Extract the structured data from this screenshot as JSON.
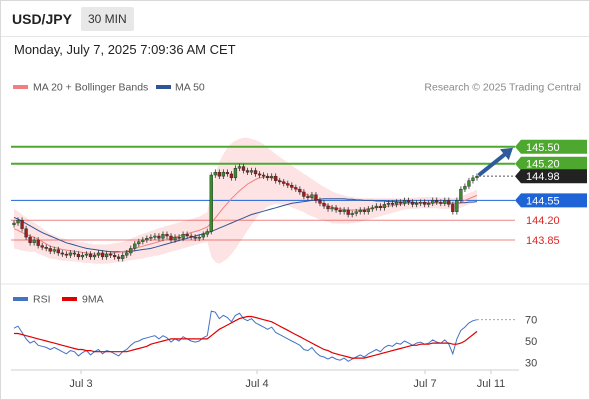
{
  "header": {
    "symbol": "USD/JPY",
    "period": "30 MIN",
    "datetime": "Monday, July 7, 2025 7:09:36 AM CET"
  },
  "legend": {
    "ma20": "MA 20 + Bollinger Bands",
    "ma50": "MA 50",
    "credit": "Research © 2025 Trading Central",
    "ma20_color": "#f08080",
    "ma50_color": "#2f5597"
  },
  "rsi_legend": {
    "rsi": "RSI",
    "ma": "9MA",
    "rsi_color": "#4472c4",
    "ma_color": "#e00000"
  },
  "chart_data": [
    {
      "type": "candlestick",
      "panel": "price",
      "x_ticks": [
        "Jul 3",
        "Jul 4",
        "Jul 7",
        "Jul 11"
      ],
      "ylim": [
        143.3,
        146.4
      ],
      "levels": [
        {
          "label": "145.50",
          "value": 145.5,
          "color": "#4ea72e",
          "kind": "resistance"
        },
        {
          "label": "145.20",
          "value": 145.2,
          "color": "#4ea72e",
          "kind": "resistance"
        },
        {
          "label": "144.98",
          "value": 144.98,
          "color": "#222222",
          "kind": "last price"
        },
        {
          "label": "144.55",
          "value": 144.55,
          "color": "#1f64d6",
          "kind": "pivot"
        },
        {
          "label": "144.20",
          "value": 144.2,
          "color": "#e02424",
          "kind": "support"
        },
        {
          "label": "143.85",
          "value": 143.85,
          "color": "#e02424",
          "kind": "support"
        }
      ],
      "close": [
        144.15,
        144.2,
        144.05,
        143.9,
        143.8,
        143.85,
        143.75,
        143.72,
        143.7,
        143.65,
        143.68,
        143.62,
        143.6,
        143.58,
        143.62,
        143.6,
        143.55,
        143.58,
        143.6,
        143.55,
        143.58,
        143.62,
        143.55,
        143.6,
        143.58,
        143.55,
        143.52,
        143.58,
        143.62,
        143.7,
        143.78,
        143.82,
        143.85,
        143.88,
        143.9,
        143.92,
        143.88,
        143.95,
        143.92,
        143.85,
        143.9,
        143.88,
        143.95,
        143.92,
        143.9,
        143.88,
        143.9,
        143.95,
        144.0,
        145.0,
        145.05,
        144.98,
        145.05,
        145.02,
        144.95,
        145.12,
        145.15,
        145.08,
        145.05,
        145.08,
        145.02,
        145.0,
        144.98,
        144.95,
        144.98,
        144.9,
        144.88,
        144.85,
        144.82,
        144.78,
        144.75,
        144.7,
        144.62,
        144.6,
        144.65,
        144.55,
        144.5,
        144.45,
        144.4,
        144.42,
        144.38,
        144.35,
        144.38,
        144.3,
        144.32,
        144.35,
        144.38,
        144.35,
        144.4,
        144.42,
        144.45,
        144.42,
        144.48,
        144.5,
        144.48,
        144.52,
        144.5,
        144.55,
        144.52,
        144.48,
        144.5,
        144.52,
        144.48,
        144.5,
        144.55,
        144.52,
        144.5,
        144.55,
        144.48,
        144.35,
        144.55,
        144.75,
        144.8,
        144.9,
        144.95,
        144.98
      ],
      "ma20": [
        144.05,
        144.02,
        143.98,
        143.95,
        143.92,
        143.9,
        143.86,
        143.82,
        143.78,
        143.74,
        143.72,
        143.7,
        143.68,
        143.67,
        143.66,
        143.65,
        143.64,
        143.63,
        143.62,
        143.61,
        143.6,
        143.6,
        143.6,
        143.6,
        143.61,
        143.62,
        143.63,
        143.64,
        143.66,
        143.68,
        143.7,
        143.72,
        143.74,
        143.76,
        143.78,
        143.8,
        143.82,
        143.84,
        143.86,
        143.88,
        143.9,
        143.92,
        143.94,
        143.96,
        143.98,
        144.0,
        144.02,
        144.05,
        144.08,
        144.15,
        144.24,
        144.33,
        144.42,
        144.5,
        144.58,
        144.65,
        144.72,
        144.78,
        144.84,
        144.88,
        144.92,
        144.95,
        144.96,
        144.96,
        144.95,
        144.93,
        144.9,
        144.87,
        144.84,
        144.8,
        144.76,
        144.72,
        144.68,
        144.64,
        144.6,
        144.56,
        144.52,
        144.49,
        144.46,
        144.43,
        144.41,
        144.4,
        144.39,
        144.38,
        144.38,
        144.38,
        144.38,
        144.39,
        144.4,
        144.41,
        144.42,
        144.43,
        144.44,
        144.45,
        144.46,
        144.47,
        144.48,
        144.49,
        144.5,
        144.5,
        144.5,
        144.51,
        144.51,
        144.51,
        144.51,
        144.51,
        144.5,
        144.5,
        144.5,
        144.49,
        144.5,
        144.52,
        144.55,
        144.58,
        144.61,
        144.64
      ],
      "ma50": [
        144.25,
        144.22,
        144.18,
        144.14,
        144.1,
        144.06,
        144.02,
        143.98,
        143.95,
        143.92,
        143.89,
        143.86,
        143.83,
        143.8,
        143.78,
        143.76,
        143.74,
        143.72,
        143.7,
        143.69,
        143.68,
        143.67,
        143.66,
        143.65,
        143.64,
        143.64,
        143.64,
        143.64,
        143.64,
        143.65,
        143.66,
        143.67,
        143.68,
        143.69,
        143.7,
        143.72,
        143.74,
        143.76,
        143.78,
        143.8,
        143.82,
        143.84,
        143.86,
        143.88,
        143.9,
        143.92,
        143.94,
        143.96,
        143.98,
        144.0,
        144.03,
        144.06,
        144.09,
        144.12,
        144.15,
        144.18,
        144.21,
        144.24,
        144.27,
        144.3,
        144.32,
        144.34,
        144.36,
        144.38,
        144.4,
        144.42,
        144.44,
        144.46,
        144.48,
        144.5,
        144.51,
        144.52,
        144.53,
        144.54,
        144.55,
        144.56,
        144.57,
        144.58,
        144.58,
        144.58,
        144.58,
        144.58,
        144.58,
        144.57,
        144.57,
        144.56,
        144.56,
        144.55,
        144.55,
        144.55,
        144.54,
        144.54,
        144.54,
        144.53,
        144.53,
        144.53,
        144.52,
        144.52,
        144.52,
        144.52,
        144.51,
        144.51,
        144.51,
        144.51,
        144.51,
        144.51,
        144.5,
        144.5,
        144.5,
        144.5,
        144.5,
        144.51,
        144.51,
        144.52,
        144.52,
        144.53
      ],
      "bb_width": [
        0.35,
        0.34,
        0.32,
        0.3,
        0.28,
        0.26,
        0.25,
        0.24,
        0.23,
        0.22,
        0.21,
        0.2,
        0.2,
        0.19,
        0.19,
        0.18,
        0.18,
        0.18,
        0.18,
        0.17,
        0.17,
        0.17,
        0.17,
        0.17,
        0.17,
        0.17,
        0.17,
        0.18,
        0.18,
        0.19,
        0.2,
        0.21,
        0.22,
        0.22,
        0.23,
        0.23,
        0.24,
        0.24,
        0.24,
        0.24,
        0.24,
        0.24,
        0.24,
        0.24,
        0.24,
        0.24,
        0.24,
        0.25,
        0.26,
        0.6,
        0.78,
        0.9,
        0.95,
        0.98,
        0.98,
        0.96,
        0.92,
        0.88,
        0.82,
        0.76,
        0.7,
        0.64,
        0.58,
        0.52,
        0.48,
        0.44,
        0.42,
        0.4,
        0.38,
        0.37,
        0.36,
        0.35,
        0.34,
        0.34,
        0.33,
        0.32,
        0.31,
        0.3,
        0.29,
        0.28,
        0.27,
        0.26,
        0.25,
        0.24,
        0.23,
        0.22,
        0.21,
        0.2,
        0.19,
        0.18,
        0.17,
        0.16,
        0.15,
        0.14,
        0.13,
        0.12,
        0.11,
        0.1,
        0.1,
        0.1,
        0.1,
        0.1,
        0.1,
        0.1,
        0.1,
        0.1,
        0.1,
        0.1,
        0.1,
        0.1,
        0.1,
        0.1,
        0.1,
        0.1,
        0.1,
        0.1
      ]
    },
    {
      "type": "line",
      "panel": "rsi",
      "y_ticks": [
        30,
        50,
        70
      ],
      "ylim": [
        20,
        80
      ],
      "series": [
        {
          "name": "RSI",
          "values": [
            62,
            64,
            58,
            52,
            48,
            50,
            46,
            45,
            44,
            42,
            44,
            42,
            40,
            38,
            41,
            40,
            36,
            39,
            41,
            37,
            40,
            42,
            38,
            41,
            40,
            38,
            36,
            40,
            42,
            46,
            49,
            50,
            52,
            53,
            54,
            55,
            52,
            55,
            53,
            49,
            52,
            50,
            54,
            52,
            50,
            49,
            50,
            53,
            55,
            78,
            77,
            71,
            74,
            72,
            68,
            74,
            76,
            71,
            69,
            71,
            67,
            65,
            63,
            61,
            63,
            58,
            56,
            54,
            52,
            50,
            48,
            46,
            42,
            41,
            44,
            39,
            36,
            35,
            33,
            35,
            33,
            32,
            34,
            31,
            33,
            35,
            37,
            35,
            38,
            40,
            42,
            40,
            44,
            46,
            45,
            48,
            47,
            50,
            48,
            46,
            48,
            49,
            47,
            48,
            51,
            49,
            48,
            51,
            47,
            38,
            52,
            60,
            63,
            67,
            69,
            70
          ]
        },
        {
          "name": "9MA",
          "values": [
            57,
            57,
            56,
            55,
            54,
            53,
            52,
            51,
            50,
            49,
            48,
            47,
            46,
            45,
            44,
            43,
            42,
            42,
            41,
            41,
            40,
            40,
            40,
            40,
            40,
            40,
            40,
            40,
            40,
            41,
            42,
            43,
            44,
            45,
            47,
            48,
            49,
            50,
            51,
            52,
            52,
            52,
            52,
            52,
            52,
            52,
            52,
            52,
            52,
            55,
            58,
            61,
            63,
            65,
            67,
            69,
            71,
            72,
            73,
            73,
            72,
            71,
            70,
            69,
            68,
            66,
            64,
            62,
            60,
            58,
            56,
            54,
            52,
            50,
            48,
            46,
            44,
            42,
            41,
            39,
            38,
            37,
            36,
            35,
            34,
            34,
            34,
            34,
            35,
            36,
            37,
            38,
            39,
            40,
            41,
            42,
            43,
            44,
            45,
            46,
            46,
            47,
            47,
            47,
            48,
            48,
            48,
            48,
            48,
            47,
            47,
            48,
            50,
            53,
            56,
            59
          ]
        }
      ]
    }
  ]
}
